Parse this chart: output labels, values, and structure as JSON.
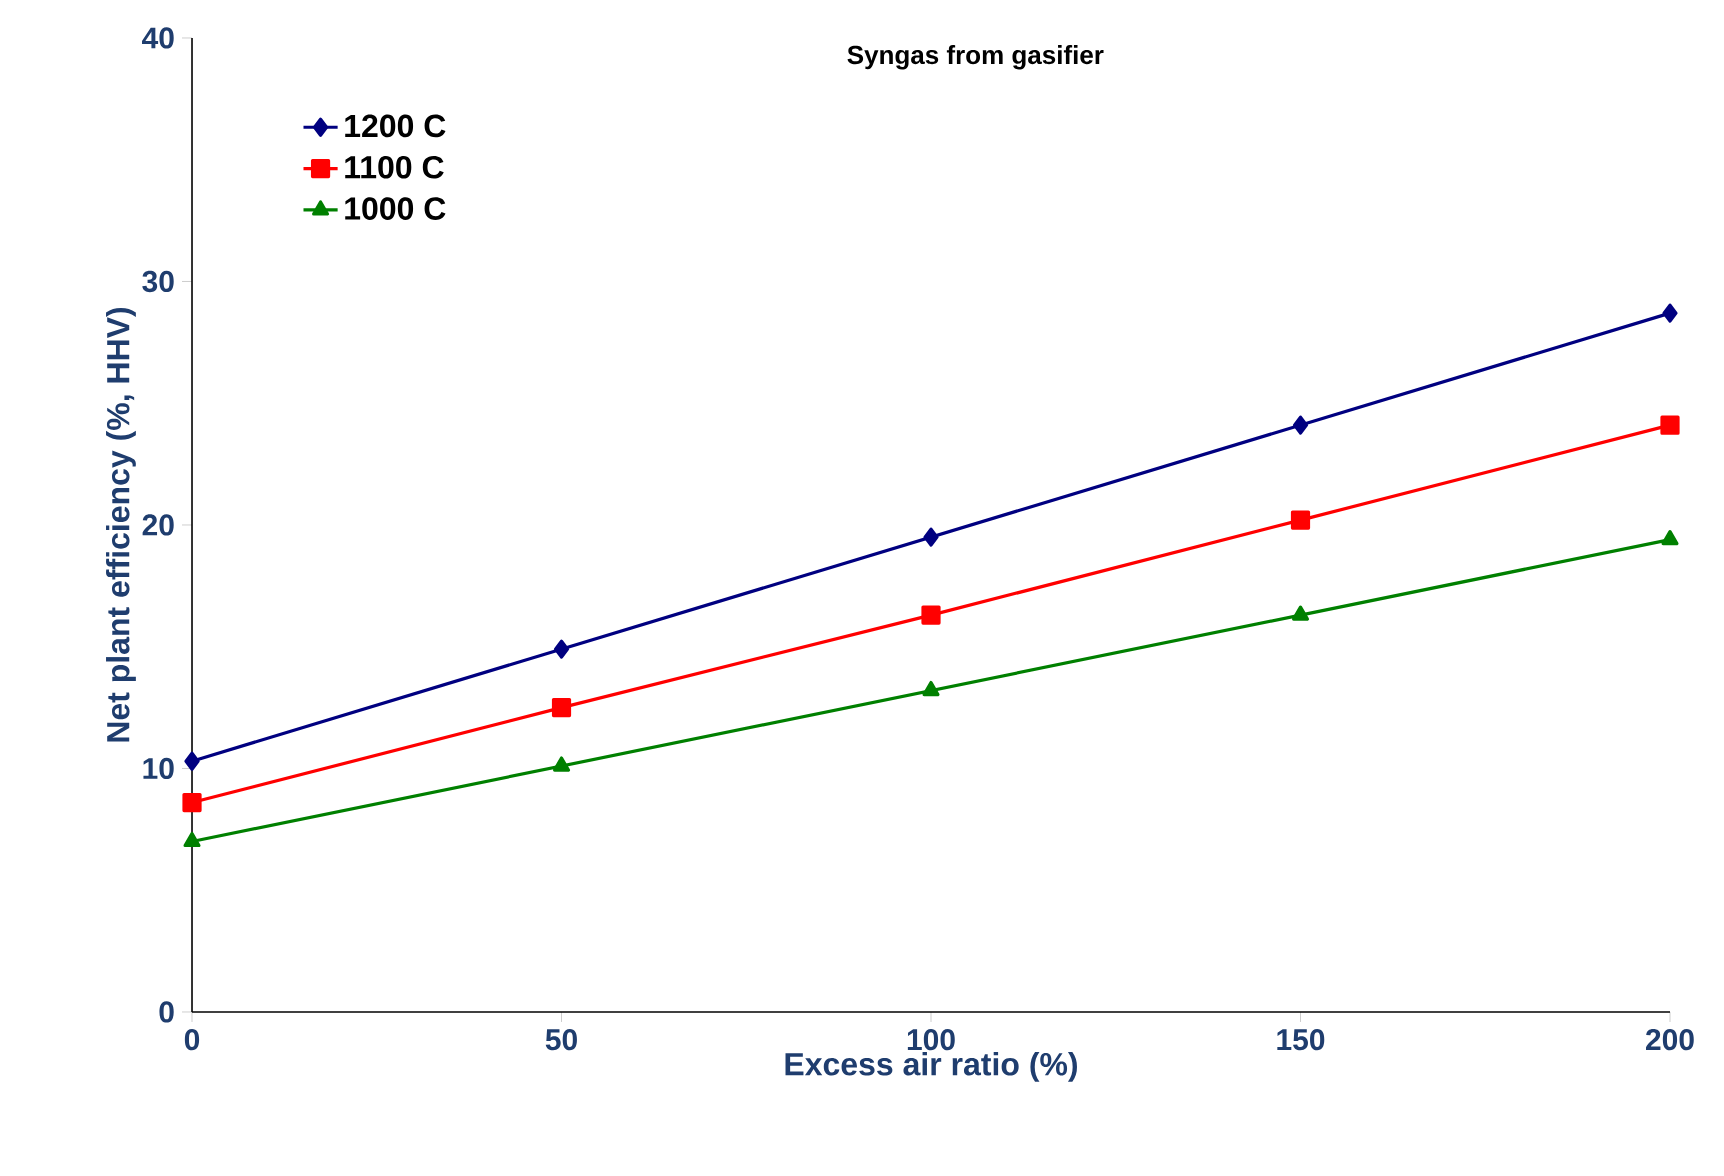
{
  "chart_data": {
    "type": "line",
    "title": "Syngas from gasifier",
    "xlabel": "Excess air ratio (%)",
    "ylabel": "Net plant efficiency (%, HHV)",
    "x": [
      0,
      50,
      100,
      150,
      200
    ],
    "series": [
      {
        "name": "1200 C",
        "color": "#000080",
        "marker": "diamond",
        "values": [
          10.3,
          14.9,
          19.5,
          24.1,
          28.7
        ]
      },
      {
        "name": "1100 C",
        "color": "#ff0000",
        "marker": "square",
        "values": [
          8.6,
          12.5,
          16.3,
          20.2,
          24.1
        ]
      },
      {
        "name": "1000 C",
        "color": "#008000",
        "marker": "triangle",
        "values": [
          7.0,
          10.1,
          13.2,
          16.3,
          19.4
        ]
      }
    ],
    "xlim": [
      0,
      200
    ],
    "xticks": [
      0,
      50,
      100,
      150,
      200
    ],
    "ylim": [
      0,
      40
    ],
    "yticks": [
      0,
      10,
      20,
      30,
      40
    ],
    "legend": "top left",
    "grid": false,
    "line_style": "solid"
  }
}
